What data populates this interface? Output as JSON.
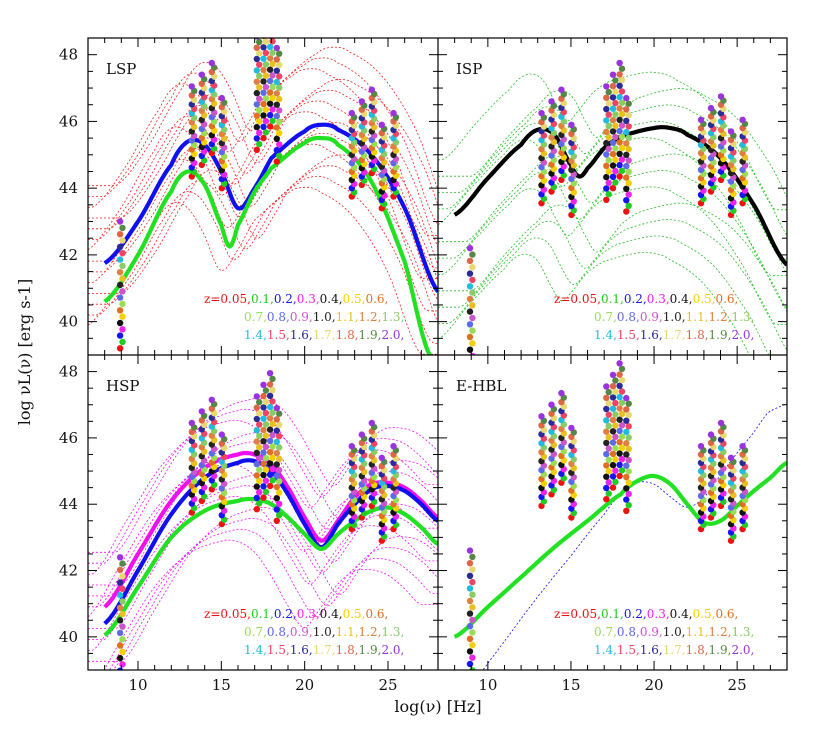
{
  "figure": {
    "xlabel": "log(ν) [Hz]",
    "ylabel": "log νL(ν) [erg s-1]"
  },
  "chart_data": {
    "type": "line",
    "xlim": [
      7,
      28
    ],
    "ylim": [
      39,
      48.5
    ],
    "x_ticks": [
      10,
      15,
      20,
      25
    ],
    "y_ticks": [
      40,
      42,
      44,
      46,
      48
    ],
    "panels": [
      {
        "name": "LSP",
        "thick_curves": [
          {
            "color": "#1010ee",
            "points": [
              [
                8,
                41.75
              ],
              [
                10,
                43.0
              ],
              [
                12,
                44.7
              ],
              [
                13,
                45.4
              ],
              [
                14,
                45.3
              ],
              [
                15,
                44.5
              ],
              [
                16,
                43.4
              ],
              [
                17,
                44.0
              ],
              [
                18,
                44.9
              ],
              [
                20,
                45.7
              ],
              [
                21,
                45.9
              ],
              [
                22,
                45.75
              ],
              [
                24,
                45.0
              ],
              [
                26,
                43.4
              ],
              [
                28,
                40.9
              ]
            ]
          },
          {
            "color": "#22e022",
            "points": [
              [
                8,
                40.6
              ],
              [
                10,
                42.0
              ],
              [
                12,
                43.9
              ],
              [
                13,
                44.5
              ],
              [
                14,
                44.1
              ],
              [
                15,
                42.9
              ],
              [
                15.5,
                42.25
              ],
              [
                16,
                42.9
              ],
              [
                17,
                43.9
              ],
              [
                18,
                44.6
              ],
              [
                20,
                45.35
              ],
              [
                21,
                45.5
              ],
              [
                22,
                45.3
              ],
              [
                24,
                44.2
              ],
              [
                26,
                41.8
              ],
              [
                27.5,
                39.0
              ]
            ]
          }
        ],
        "dotted_curves": {
          "color": "#ee2222",
          "count": 14,
          "y_low": 42.0,
          "y_high": 47.6
        },
        "points_at_x": [
          9,
          13.3,
          13.9,
          14.5,
          15.1,
          17.2,
          17.6,
          18.0,
          18.4,
          22.9,
          23.5,
          24.1,
          24.7,
          25.4
        ]
      },
      {
        "name": "ISP",
        "thick_curves": [
          {
            "color": "#000000",
            "points": [
              [
                8,
                43.2
              ],
              [
                10,
                44.3
              ],
              [
                12,
                45.3
              ],
              [
                13,
                45.75
              ],
              [
                14,
                45.6
              ],
              [
                15,
                44.7
              ],
              [
                15.5,
                44.35
              ],
              [
                16,
                44.6
              ],
              [
                17,
                45.2
              ],
              [
                18,
                45.55
              ],
              [
                20,
                45.8
              ],
              [
                21,
                45.8
              ],
              [
                22,
                45.6
              ],
              [
                24,
                44.9
              ],
              [
                26,
                43.5
              ],
              [
                28,
                41.7
              ]
            ]
          }
        ],
        "dotted_curves": {
          "color": "#22c222",
          "count": 12,
          "y_low": 39.5,
          "y_high": 46.7
        },
        "points_at_x": [
          9,
          13.3,
          13.9,
          14.5,
          15.1,
          17.2,
          17.6,
          18.0,
          18.4,
          22.9,
          23.5,
          24.1,
          24.7,
          25.4
        ]
      },
      {
        "name": "HSP",
        "thick_curves": [
          {
            "color": "#ee11ee",
            "points": [
              [
                8,
                40.9
              ],
              [
                10,
                42.5
              ],
              [
                12,
                44.1
              ],
              [
                14,
                45.1
              ],
              [
                16,
                45.5
              ],
              [
                17,
                45.5
              ],
              [
                18,
                45.2
              ],
              [
                19,
                44.5
              ],
              [
                20,
                43.6
              ],
              [
                21,
                42.9
              ],
              [
                22,
                43.5
              ],
              [
                23,
                44.2
              ],
              [
                24,
                44.6
              ],
              [
                25,
                44.65
              ],
              [
                26,
                44.5
              ],
              [
                27,
                44.1
              ],
              [
                28,
                43.6
              ]
            ]
          },
          {
            "color": "#1010ee",
            "points": [
              [
                8,
                40.4
              ],
              [
                10,
                42.0
              ],
              [
                12,
                43.7
              ],
              [
                14,
                44.8
              ],
              [
                16,
                45.25
              ],
              [
                17,
                45.3
              ],
              [
                18,
                45.0
              ],
              [
                19,
                44.3
              ],
              [
                20,
                43.4
              ],
              [
                21,
                42.7
              ],
              [
                22,
                43.4
              ],
              [
                23,
                44.0
              ],
              [
                24,
                44.45
              ],
              [
                25,
                44.55
              ],
              [
                26,
                44.4
              ],
              [
                27,
                44.0
              ],
              [
                28,
                43.5
              ]
            ]
          },
          {
            "color": "#22e022",
            "points": [
              [
                8,
                40.05
              ],
              [
                10,
                41.5
              ],
              [
                12,
                43.0
              ],
              [
                14,
                43.8
              ],
              [
                16,
                44.1
              ],
              [
                17,
                44.15
              ],
              [
                18,
                44.0
              ],
              [
                19,
                43.6
              ],
              [
                20,
                43.1
              ],
              [
                21,
                42.65
              ],
              [
                22,
                43.1
              ],
              [
                23,
                43.5
              ],
              [
                24,
                43.8
              ],
              [
                25,
                43.9
              ],
              [
                26,
                43.7
              ],
              [
                27,
                43.3
              ],
              [
                28,
                42.8
              ]
            ]
          }
        ],
        "dotted_curves": {
          "color": "#ee11ee",
          "count": 14,
          "y_low": 41.0,
          "y_high": 46.7
        },
        "points_at_x": [
          9,
          13.3,
          13.9,
          14.5,
          15.1,
          17.2,
          17.6,
          18.0,
          18.4,
          22.9,
          23.5,
          24.1,
          24.7,
          25.4
        ]
      },
      {
        "name": "E-HBL",
        "thick_curves": [
          {
            "color": "#22e022",
            "points": [
              [
                8,
                40.0
              ],
              [
                10,
                40.9
              ],
              [
                12,
                41.8
              ],
              [
                14,
                42.7
              ],
              [
                16,
                43.5
              ],
              [
                18,
                44.3
              ],
              [
                19,
                44.7
              ],
              [
                20,
                44.85
              ],
              [
                21,
                44.6
              ],
              [
                22,
                44.0
              ],
              [
                23,
                43.45
              ],
              [
                24,
                43.5
              ],
              [
                25,
                43.95
              ],
              [
                26,
                44.4
              ],
              [
                27,
                44.8
              ],
              [
                28,
                45.25
              ]
            ]
          }
        ],
        "dotted_curves": {
          "color": "#1010ee",
          "count": 1,
          "y_low": 40.2,
          "y_high": 44.5
        },
        "points_at_x": [
          9,
          13.3,
          13.9,
          14.5,
          15.1,
          17.2,
          17.6,
          18.0,
          18.4,
          22.9,
          23.5,
          24.1,
          24.7,
          25.4
        ]
      }
    ],
    "redshift_legend": {
      "prefix": "z=",
      "rows": [
        [
          {
            "t": "0.05,",
            "c": "#ee1111"
          },
          {
            "t": "0.1,",
            "c": "#22cc22"
          },
          {
            "t": "0.2,",
            "c": "#1515ee"
          },
          {
            "t": "0.3,",
            "c": "#ee22ee"
          },
          {
            "t": "0.4,",
            "c": "#111111"
          },
          {
            "t": "0.5,",
            "c": "#f5d000"
          },
          {
            "t": "0.6,",
            "c": "#e07020"
          }
        ],
        [
          {
            "t": "0.7,",
            "c": "#99dd55"
          },
          {
            "t": "0.8,",
            "c": "#5a6ae8"
          },
          {
            "t": "0.9,",
            "c": "#cc55cc"
          },
          {
            "t": "1.0,",
            "c": "#222222"
          },
          {
            "t": "1.1,",
            "c": "#e8c020"
          },
          {
            "t": "1.2,",
            "c": "#e08040"
          },
          {
            "t": "1.3,",
            "c": "#88cc66"
          }
        ],
        [
          {
            "t": "1.4,",
            "c": "#22bbdd"
          },
          {
            "t": "1.5,",
            "c": "#ee4466"
          },
          {
            "t": "1.6,",
            "c": "#2a2a99"
          },
          {
            "t": "1.7,",
            "c": "#e8d870"
          },
          {
            "t": "1.8,",
            "c": "#dd6644"
          },
          {
            "t": "1.9,",
            "c": "#558844"
          },
          {
            "t": "2.0,",
            "c": "#9933dd"
          }
        ]
      ]
    }
  }
}
